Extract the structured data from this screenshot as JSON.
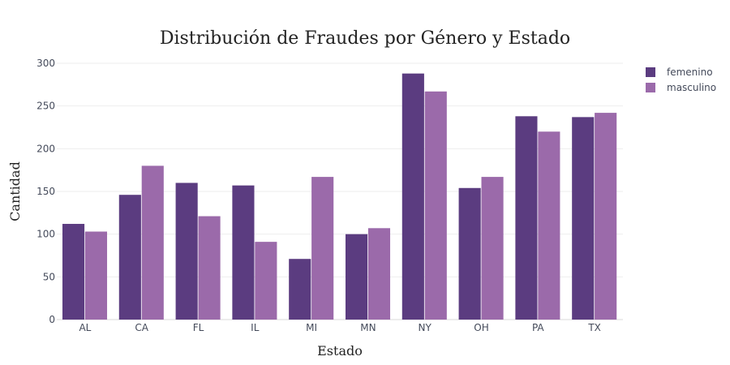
{
  "chart_data": {
    "type": "bar",
    "title": "Distribución de Fraudes por Género y Estado",
    "xlabel": "Estado",
    "ylabel": "Cantidad",
    "categories": [
      "AL",
      "CA",
      "FL",
      "IL",
      "MI",
      "MN",
      "NY",
      "OH",
      "PA",
      "TX"
    ],
    "series": [
      {
        "name": "femenino",
        "color": "#5b3c80",
        "values": [
          112,
          146,
          160,
          157,
          71,
          100,
          288,
          154,
          238,
          237
        ]
      },
      {
        "name": "masculino",
        "color": "#9b6aaa",
        "values": [
          103,
          180,
          121,
          91,
          167,
          107,
          267,
          167,
          220,
          242
        ]
      }
    ],
    "ylim": [
      0,
      300
    ],
    "yticks": [
      0,
      50,
      100,
      150,
      200,
      250,
      300
    ],
    "grid": true,
    "legend_position": "top-right"
  }
}
